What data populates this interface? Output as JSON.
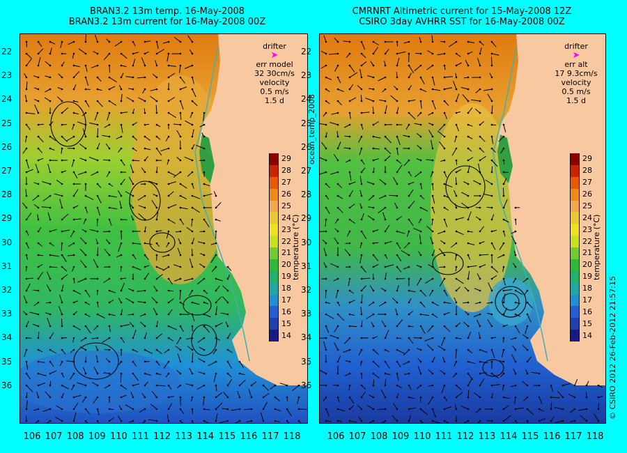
{
  "left_panel": {
    "title_line1": "BRAN3.2 13m temp. 16-May-2008",
    "title_line2": "BRAN3.2 13m current for 16-May-2008 00Z",
    "legend": {
      "drifter": "drifter",
      "err_label": "err model",
      "err_value": "32 30cm/s",
      "velocity": "velocity",
      "velocity_scale": "0.5 m/s",
      "duration": "1.5 d"
    }
  },
  "right_panel": {
    "title_line1": "CMRNRT Altimetric current for 15-May-2008 12Z",
    "title_line2": "CSIRO 3day AVHRR SST for 16-May-2008 00Z",
    "legend": {
      "drifter": "drifter",
      "err_label": "err alt",
      "err_value": "17 9.3cm/s",
      "velocity": "velocity",
      "velocity_scale": "0.5 m/s",
      "duration": "1.5 d"
    }
  },
  "latitude_labels": [
    "22",
    "23",
    "24",
    "25",
    "26",
    "27",
    "28",
    "29",
    "30",
    "31",
    "32",
    "33",
    "34",
    "35",
    "36"
  ],
  "longitude_labels": [
    "106",
    "107",
    "108",
    "109",
    "110",
    "111",
    "112",
    "113",
    "114",
    "115",
    "116",
    "117",
    "118"
  ],
  "colorbar": {
    "ticks": [
      "29",
      "28",
      "27",
      "26",
      "25",
      "24",
      "23",
      "22",
      "21",
      "20",
      "19",
      "18",
      "17",
      "16",
      "15",
      "14"
    ],
    "label": "temperature (°C)",
    "colors": [
      "#8b0000",
      "#cc2200",
      "#e85a00",
      "#f08a1a",
      "#f2a84a",
      "#e8c830",
      "#f0e020",
      "#c8e020",
      "#70cc30",
      "#30b838",
      "#20b070",
      "#20a8a8",
      "#2090d0",
      "#2060d0",
      "#2040b0",
      "#1a1a80"
    ]
  },
  "side_label": "ocean_temp_2008",
  "credit": "© CSIRO 2012   26-Feb-2012 21:57:15",
  "colors": {
    "background": "#00ffff",
    "land": "#f8c8a0",
    "drifter": "#ff00ff"
  }
}
